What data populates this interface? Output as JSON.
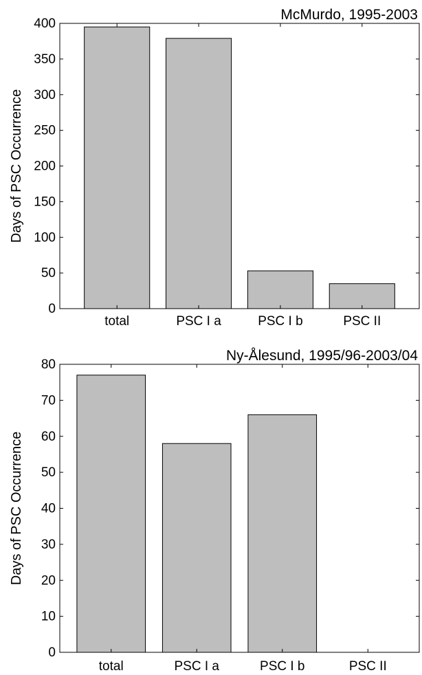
{
  "chart_data": [
    {
      "type": "bar",
      "title": "McMurdo, 1995-2003",
      "xlabel": "",
      "ylabel": "Days of PSC Occurrence",
      "categories": [
        "total",
        "PSC I a",
        "PSC I b",
        "PSC II"
      ],
      "values": [
        395,
        379,
        53,
        35
      ],
      "ylim": [
        0,
        400
      ],
      "yticks": [
        0,
        50,
        100,
        150,
        200,
        250,
        300,
        350,
        400
      ],
      "xlim": [
        0.3,
        4.7
      ],
      "grid": false,
      "bar_color": "#bebebe",
      "edge_color": "#000000"
    },
    {
      "type": "bar",
      "title": "Ny-Ålesund, 1995/96-2003/04",
      "xlabel": "",
      "ylabel": "Days of PSC Occurrence",
      "categories": [
        "total",
        "PSC I a",
        "PSC I b",
        "PSC II"
      ],
      "values": [
        77,
        58,
        66,
        0
      ],
      "ylim": [
        0,
        80
      ],
      "yticks": [
        0,
        10,
        20,
        30,
        40,
        50,
        60,
        70,
        80
      ],
      "xlim": [
        0.4,
        4.6
      ],
      "grid": false,
      "bar_color": "#bebebe",
      "edge_color": "#000000"
    }
  ]
}
